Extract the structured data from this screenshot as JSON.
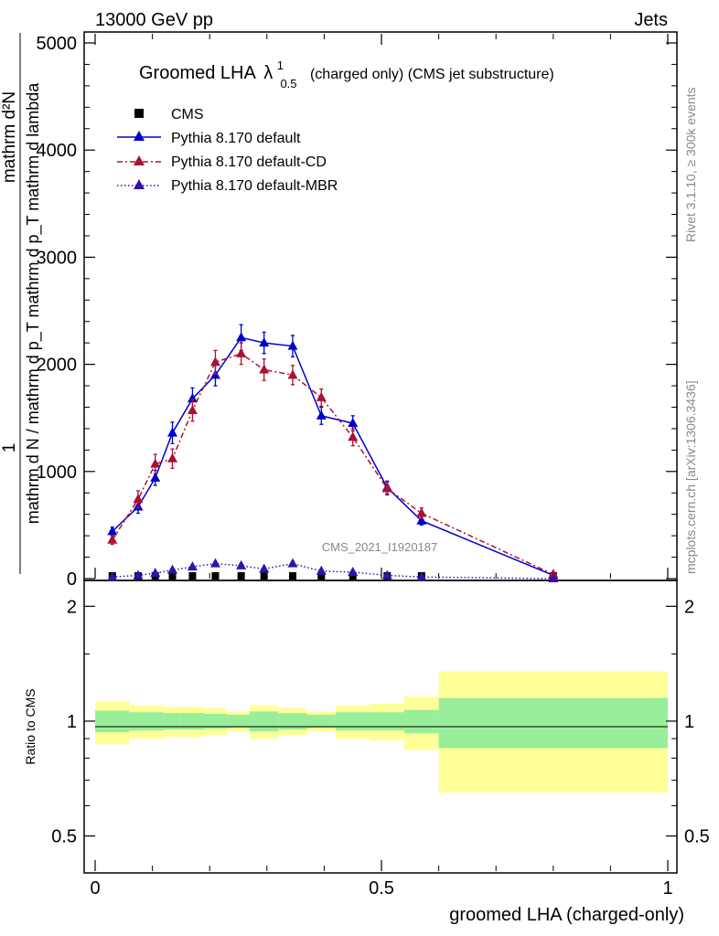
{
  "header": {
    "left": "13000 GeV pp",
    "right": "Jets"
  },
  "chart_data": {
    "type": "line",
    "title_main": "Groomed LHA",
    "title_symbol": "λ",
    "title_sup": "1",
    "title_sub": "0.5",
    "title_rest": "(charged only) (CMS jet substructure)",
    "ylabel_top": "1",
    "ylabel_bottom": "mathrm d N / mathrm d p_T mathrm d p_T mathrm d lambda",
    "ylabel_numer": "mathrm d²N",
    "xlabel": "groomed LHA (charged-only)",
    "ratio_ylabel": "Ratio to CMS",
    "watermark": "CMS_2021_I1920187",
    "side_text_1": "Rivet 3.1.10, ≥ 300k events",
    "side_text_2": "mcplots.cern.ch [arXiv:1306.3436]",
    "xlim": [
      0,
      1
    ],
    "ylim": [
      0,
      5000
    ],
    "ratio_ylim": [
      0.4,
      2.3
    ],
    "y_ticks": [
      "0",
      "1000",
      "2000",
      "3000",
      "4000",
      "5000"
    ],
    "x_ticks": [
      "0",
      "0.5",
      "1"
    ],
    "ratio_ticks": [
      "0.5",
      "1",
      "2"
    ],
    "x": [
      0.03,
      0.075,
      0.105,
      0.135,
      0.17,
      0.21,
      0.255,
      0.295,
      0.345,
      0.395,
      0.45,
      0.51,
      0.57,
      0.8
    ],
    "series": [
      {
        "name": "CMS",
        "color": "#000000",
        "marker": "square",
        "values": [
          0,
          0,
          0,
          0,
          0,
          0,
          0,
          0,
          0,
          0,
          0,
          0,
          0,
          0
        ]
      },
      {
        "name": "Pythia 8.170 default",
        "color": "#0000cc",
        "line": "solid",
        "values": [
          440,
          670,
          940,
          1360,
          1680,
          1900,
          2250,
          2200,
          2170,
          1520,
          1450,
          850,
          540,
          30
        ],
        "errors": [
          40,
          60,
          70,
          100,
          100,
          100,
          120,
          100,
          100,
          80,
          70,
          60,
          40,
          10
        ]
      },
      {
        "name": "Pythia 8.170 default-CD",
        "color": "#aa1133",
        "line": "dashdot",
        "values": [
          360,
          740,
          1070,
          1120,
          1570,
          2020,
          2100,
          1950,
          1900,
          1690,
          1320,
          840,
          610,
          40
        ],
        "errors": [
          40,
          80,
          90,
          90,
          100,
          110,
          100,
          100,
          90,
          80,
          80,
          60,
          50,
          10
        ]
      },
      {
        "name": "Pythia 8.170 default-MBR",
        "color": "#3311aa",
        "line": "dotted",
        "values": [
          15,
          30,
          50,
          80,
          110,
          140,
          120,
          90,
          140,
          70,
          60,
          30,
          15,
          0
        ],
        "errors": [
          5,
          10,
          10,
          15,
          15,
          20,
          20,
          15,
          20,
          15,
          10,
          10,
          5,
          0
        ]
      }
    ],
    "ratio_band_edges": [
      0.0,
      0.06,
      0.09,
      0.12,
      0.15,
      0.19,
      0.23,
      0.27,
      0.32,
      0.37,
      0.42,
      0.48,
      0.54,
      0.6,
      1.0
    ],
    "ratio_band_inner": [
      0.065,
      0.055,
      0.055,
      0.05,
      0.05,
      0.045,
      0.04,
      0.06,
      0.05,
      0.04,
      0.055,
      0.055,
      0.07,
      0.15
    ],
    "ratio_band_outer": [
      0.13,
      0.1,
      0.1,
      0.09,
      0.09,
      0.08,
      0.06,
      0.1,
      0.08,
      0.06,
      0.1,
      0.11,
      0.16,
      0.35
    ],
    "inner_band_color": "#99ee99",
    "outer_band_color": "#ffff99"
  }
}
